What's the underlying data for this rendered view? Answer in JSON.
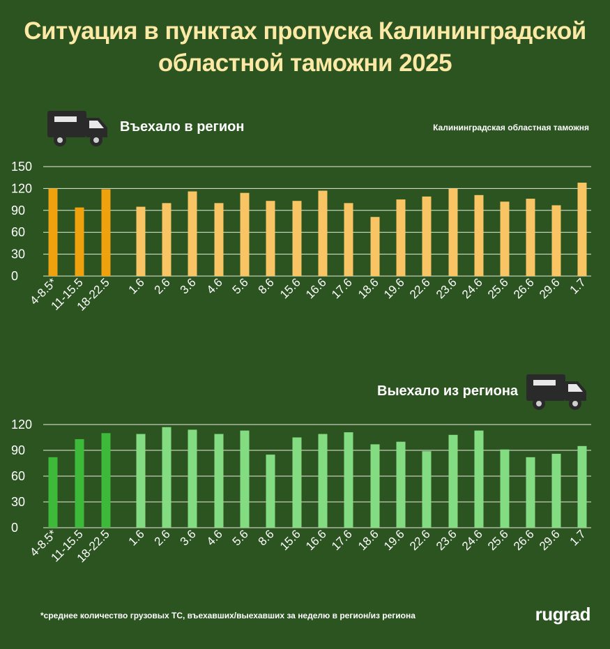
{
  "title_line1": "Ситуация в пунктах пропуска Калининградской",
  "title_line2": "областной таможни 2025",
  "source": "Калининградская областная таможня",
  "footnote": "*среднее количество грузовых ТС, въехавших/выехавших за неделю в регион/из региона",
  "logo": "rugrad",
  "icons": {
    "truck": "truck-icon"
  },
  "colors": {
    "background": "#2b5421",
    "in_dark": "#f0a10e",
    "in_light": "#f8c464",
    "out_dark": "#3dba3a",
    "out_light": "#84dc82",
    "title": "#fce9a6"
  },
  "chart_data": [
    {
      "type": "bar",
      "title": "Въехало в регион",
      "categories": [
        "4-8.5*",
        "11-15.5",
        "18-22.5",
        "1.6",
        "2.6",
        "3.6",
        "4.6",
        "5.6",
        "8.6",
        "15.6",
        "16.6",
        "17.6",
        "18.6",
        "19.6",
        "22.6",
        "23.6",
        "24.6",
        "25.6",
        "26.6",
        "29.6",
        "1.7"
      ],
      "values": [
        120,
        94,
        119,
        95,
        100,
        116,
        100,
        114,
        103,
        103,
        117,
        100,
        81,
        105,
        109,
        120,
        111,
        102,
        106,
        97,
        128
      ],
      "highlight_count": 3,
      "ylim": [
        0,
        150
      ],
      "yticks": [
        0,
        30,
        60,
        90,
        120,
        150
      ],
      "grid": true
    },
    {
      "type": "bar",
      "title": "Выехало из региона",
      "categories": [
        "4-8.5*",
        "11-15.5",
        "18-22.5",
        "1.6",
        "2.6",
        "3.6",
        "4.6",
        "5.6",
        "8.6",
        "15.6",
        "16.6",
        "17.6",
        "18.6",
        "19.6",
        "22.6",
        "23.6",
        "24.6",
        "25.6",
        "26.6",
        "29.6",
        "1.7"
      ],
      "values": [
        82,
        103,
        110,
        109,
        117,
        114,
        109,
        113,
        85,
        105,
        109,
        111,
        97,
        100,
        89,
        108,
        113,
        91,
        82,
        86,
        95
      ],
      "highlight_count": 3,
      "ylim": [
        0,
        120
      ],
      "yticks": [
        0,
        30,
        60,
        90,
        120
      ],
      "grid": true
    }
  ]
}
